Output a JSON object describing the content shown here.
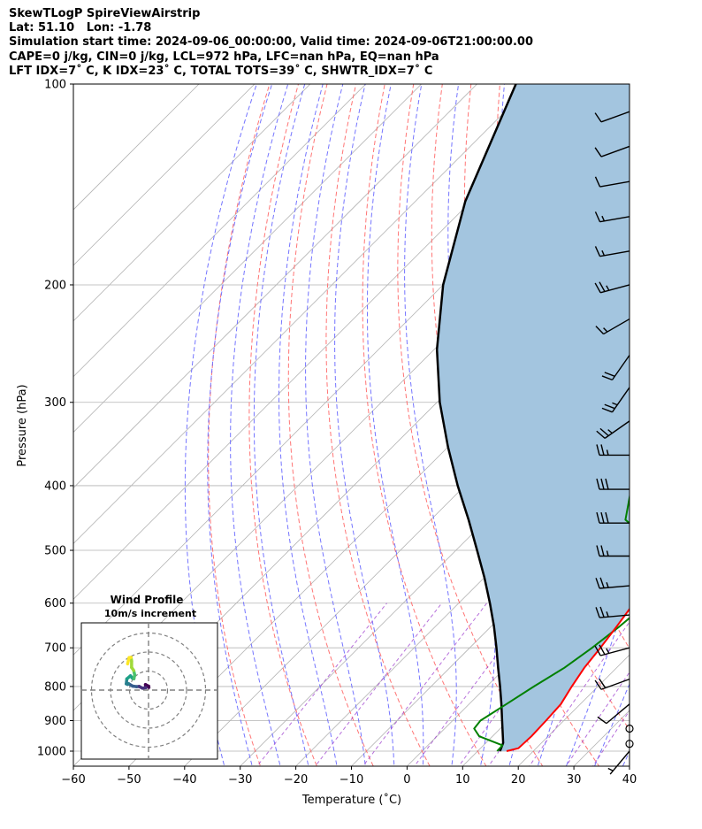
{
  "title_lines": [
    "SkewTLogP SpireViewAirstrip",
    "Lat: 51.10   Lon: -1.78",
    "Simulation start time: 2024-09-06_00:00:00, Valid time: 2024-09-06T21:00:00.00",
    "CAPE=0 j/kg, CIN=0 j/kg, LCL=972 hPa, LFC=nan hPa, EQ=nan hPa",
    "LFT IDX=7˚ C, K IDX=23˚ C, TOTAL TOTS=39˚ C, SHWTR_IDX=7˚ C"
  ],
  "chart_data": {
    "type": "line",
    "subtype": "skew-T log-P diagram",
    "xlabel": "Temperature (˚C)",
    "ylabel": "Pressure (hPa)",
    "xlim": [
      -60,
      40
    ],
    "ylim": [
      1050,
      100
    ],
    "y_scale": "log",
    "grid": true,
    "xticks": [
      -60,
      -50,
      -40,
      -30,
      -20,
      -10,
      0,
      10,
      20,
      30,
      40
    ],
    "yticks": [
      1000,
      900,
      800,
      700,
      600,
      500,
      400,
      300,
      200,
      100
    ],
    "colors": {
      "temperature": "#ff0000",
      "dewpoint": "#008000",
      "parcel": "#000000",
      "shade": "#a3c5df",
      "dry_adiabat": "#ff6666",
      "moist_adiabat": "#6666ff",
      "mixing_ratio": "#9933cc",
      "isotherm": "#b3b3b3"
    },
    "series": [
      {
        "role": "temperature",
        "points": [
          {
            "p": 1000,
            "t": 15.2
          },
          {
            "p": 990,
            "t": 16.8
          },
          {
            "p": 950,
            "t": 17.0
          },
          {
            "p": 900,
            "t": 16.8
          },
          {
            "p": 850,
            "t": 16.5
          },
          {
            "p": 800,
            "t": 15.3
          },
          {
            "p": 750,
            "t": 14.2
          },
          {
            "p": 700,
            "t": 13.5
          },
          {
            "p": 650,
            "t": 12.6
          },
          {
            "p": 600,
            "t": 11.5
          },
          {
            "p": 550,
            "t": 10.3
          },
          {
            "p": 500,
            "t": 9.4
          },
          {
            "p": 470,
            "t": 7.4
          },
          {
            "p": 450,
            "t": 6.0
          },
          {
            "p": 400,
            "t": 3.8
          },
          {
            "p": 350,
            "t": 0.5
          },
          {
            "p": 320,
            "t": -3.0
          },
          {
            "p": 300,
            "t": -7.8
          },
          {
            "p": 280,
            "t": -10.0
          },
          {
            "p": 260,
            "t": -13.0
          },
          {
            "p": 240,
            "t": -16.3
          },
          {
            "p": 220,
            "t": -19.0
          },
          {
            "p": 200,
            "t": -21.7
          },
          {
            "p": 190,
            "t": -22.0
          },
          {
            "p": 180,
            "t": -22.2
          },
          {
            "p": 170,
            "t": -23.8
          },
          {
            "p": 160,
            "t": -27.8
          },
          {
            "p": 150,
            "t": -30.5
          },
          {
            "p": 140,
            "t": -32.3
          },
          {
            "p": 130,
            "t": -35.5
          },
          {
            "p": 120,
            "t": -38.0
          },
          {
            "p": 110,
            "t": -42.0
          },
          {
            "p": 100,
            "t": -46.5
          }
        ]
      },
      {
        "role": "dewpoint",
        "points": [
          {
            "p": 1000,
            "t": 13.5
          },
          {
            "p": 980,
            "t": 13.4
          },
          {
            "p": 950,
            "t": 7.6
          },
          {
            "p": 925,
            "t": 5.3
          },
          {
            "p": 900,
            "t": 5.0
          },
          {
            "p": 850,
            "t": 6.7
          },
          {
            "p": 800,
            "t": 8.5
          },
          {
            "p": 750,
            "t": 10.6
          },
          {
            "p": 700,
            "t": 12.0
          },
          {
            "p": 650,
            "t": 13.1
          },
          {
            "p": 600,
            "t": 13.9
          },
          {
            "p": 550,
            "t": 12.9
          },
          {
            "p": 500,
            "t": 6.9
          },
          {
            "p": 470,
            "t": 0.0
          },
          {
            "p": 450,
            "t": -5.0
          },
          {
            "p": 400,
            "t": -10.0
          },
          {
            "p": 360,
            "t": -14.0
          },
          {
            "p": 300,
            "t": -24.5
          },
          {
            "p": 280,
            "t": -27.5
          },
          {
            "p": 260,
            "t": -30.5
          },
          {
            "p": 240,
            "t": -33.7
          },
          {
            "p": 220,
            "t": -37.0
          },
          {
            "p": 200,
            "t": -40.5
          },
          {
            "p": 190,
            "t": -43.4
          },
          {
            "p": 180,
            "t": -46.7
          },
          {
            "p": 170,
            "t": -48.0
          },
          {
            "p": 160,
            "t": -51.5
          },
          {
            "p": 150,
            "t": -56.4
          },
          {
            "p": 140,
            "t": -58.0
          },
          {
            "p": 120,
            "t": -60.0
          },
          {
            "p": 100,
            "t": -62.5
          }
        ]
      },
      {
        "role": "parcel",
        "points": [
          {
            "p": 1000,
            "t": 14.0
          },
          {
            "p": 972,
            "t": 13.1
          },
          {
            "p": 900,
            "t": 8.9
          },
          {
            "p": 850,
            "t": 5.8
          },
          {
            "p": 800,
            "t": 2.4
          },
          {
            "p": 750,
            "t": -1.3
          },
          {
            "p": 700,
            "t": -5.2
          },
          {
            "p": 650,
            "t": -9.5
          },
          {
            "p": 600,
            "t": -14.4
          },
          {
            "p": 550,
            "t": -19.9
          },
          {
            "p": 500,
            "t": -26.2
          },
          {
            "p": 450,
            "t": -33.2
          },
          {
            "p": 400,
            "t": -41.3
          },
          {
            "p": 350,
            "t": -50.0
          },
          {
            "p": 300,
            "t": -59.5
          },
          {
            "p": 250,
            "t": -69.5
          },
          {
            "p": 200,
            "t": -80.0
          },
          {
            "p": 150,
            "t": -91.0
          },
          {
            "p": 100,
            "t": -103.0
          }
        ]
      }
    ],
    "wind_barbs": [
      {
        "p": 1000,
        "speed_kt": 5,
        "dir_deg": 220
      },
      {
        "p": 975,
        "speed_kt": 0,
        "dir_deg": 0
      },
      {
        "p": 925,
        "speed_kt": 0,
        "dir_deg": 0
      },
      {
        "p": 850,
        "speed_kt": 10,
        "dir_deg": 230
      },
      {
        "p": 780,
        "speed_kt": 20,
        "dir_deg": 250
      },
      {
        "p": 700,
        "speed_kt": 25,
        "dir_deg": 255
      },
      {
        "p": 625,
        "speed_kt": 25,
        "dir_deg": 265
      },
      {
        "p": 565,
        "speed_kt": 25,
        "dir_deg": 265
      },
      {
        "p": 510,
        "speed_kt": 25,
        "dir_deg": 270
      },
      {
        "p": 455,
        "speed_kt": 30,
        "dir_deg": 270
      },
      {
        "p": 405,
        "speed_kt": 30,
        "dir_deg": 270
      },
      {
        "p": 360,
        "speed_kt": 25,
        "dir_deg": 270
      },
      {
        "p": 320,
        "speed_kt": 25,
        "dir_deg": 235
      },
      {
        "p": 285,
        "speed_kt": 25,
        "dir_deg": 215
      },
      {
        "p": 255,
        "speed_kt": 20,
        "dir_deg": 215
      },
      {
        "p": 225,
        "speed_kt": 15,
        "dir_deg": 240
      },
      {
        "p": 200,
        "speed_kt": 25,
        "dir_deg": 255
      },
      {
        "p": 178,
        "speed_kt": 15,
        "dir_deg": 260
      },
      {
        "p": 158,
        "speed_kt": 15,
        "dir_deg": 260
      },
      {
        "p": 140,
        "speed_kt": 10,
        "dir_deg": 260
      },
      {
        "p": 124,
        "speed_kt": 10,
        "dir_deg": 250
      },
      {
        "p": 110,
        "speed_kt": 10,
        "dir_deg": 250
      }
    ],
    "hodograph": {
      "title": "Wind Profile",
      "subtitle": "10m/s increment",
      "colormap": "viridis",
      "points": [
        {
          "u": 0.2,
          "v": 1.4
        },
        {
          "u": 0.1,
          "v": 2.0
        },
        {
          "u": -1.6,
          "v": 2.9
        },
        {
          "u": -1.4,
          "v": 1.3
        },
        {
          "u": -3.2,
          "v": 1.0
        },
        {
          "u": -4.9,
          "v": 1.9
        },
        {
          "u": -6.3,
          "v": 1.8
        },
        {
          "u": -8.4,
          "v": 2.1
        },
        {
          "u": -10.5,
          "v": 3.4
        },
        {
          "u": -11.0,
          "v": 3.0
        },
        {
          "u": -11.7,
          "v": 3.3
        },
        {
          "u": -11.4,
          "v": 5.9
        },
        {
          "u": -9.5,
          "v": 7.5
        },
        {
          "u": -8.5,
          "v": 6.3
        },
        {
          "u": -7.7,
          "v": 6.0
        },
        {
          "u": -7.3,
          "v": 8.0
        },
        {
          "u": -7.8,
          "v": 10.3
        },
        {
          "u": -8.9,
          "v": 11.9
        },
        {
          "u": -8.9,
          "v": 15.3
        },
        {
          "u": -9.2,
          "v": 17.2
        },
        {
          "u": -10.2,
          "v": 17.1
        },
        {
          "u": -11.0,
          "v": 13.8
        }
      ]
    }
  }
}
